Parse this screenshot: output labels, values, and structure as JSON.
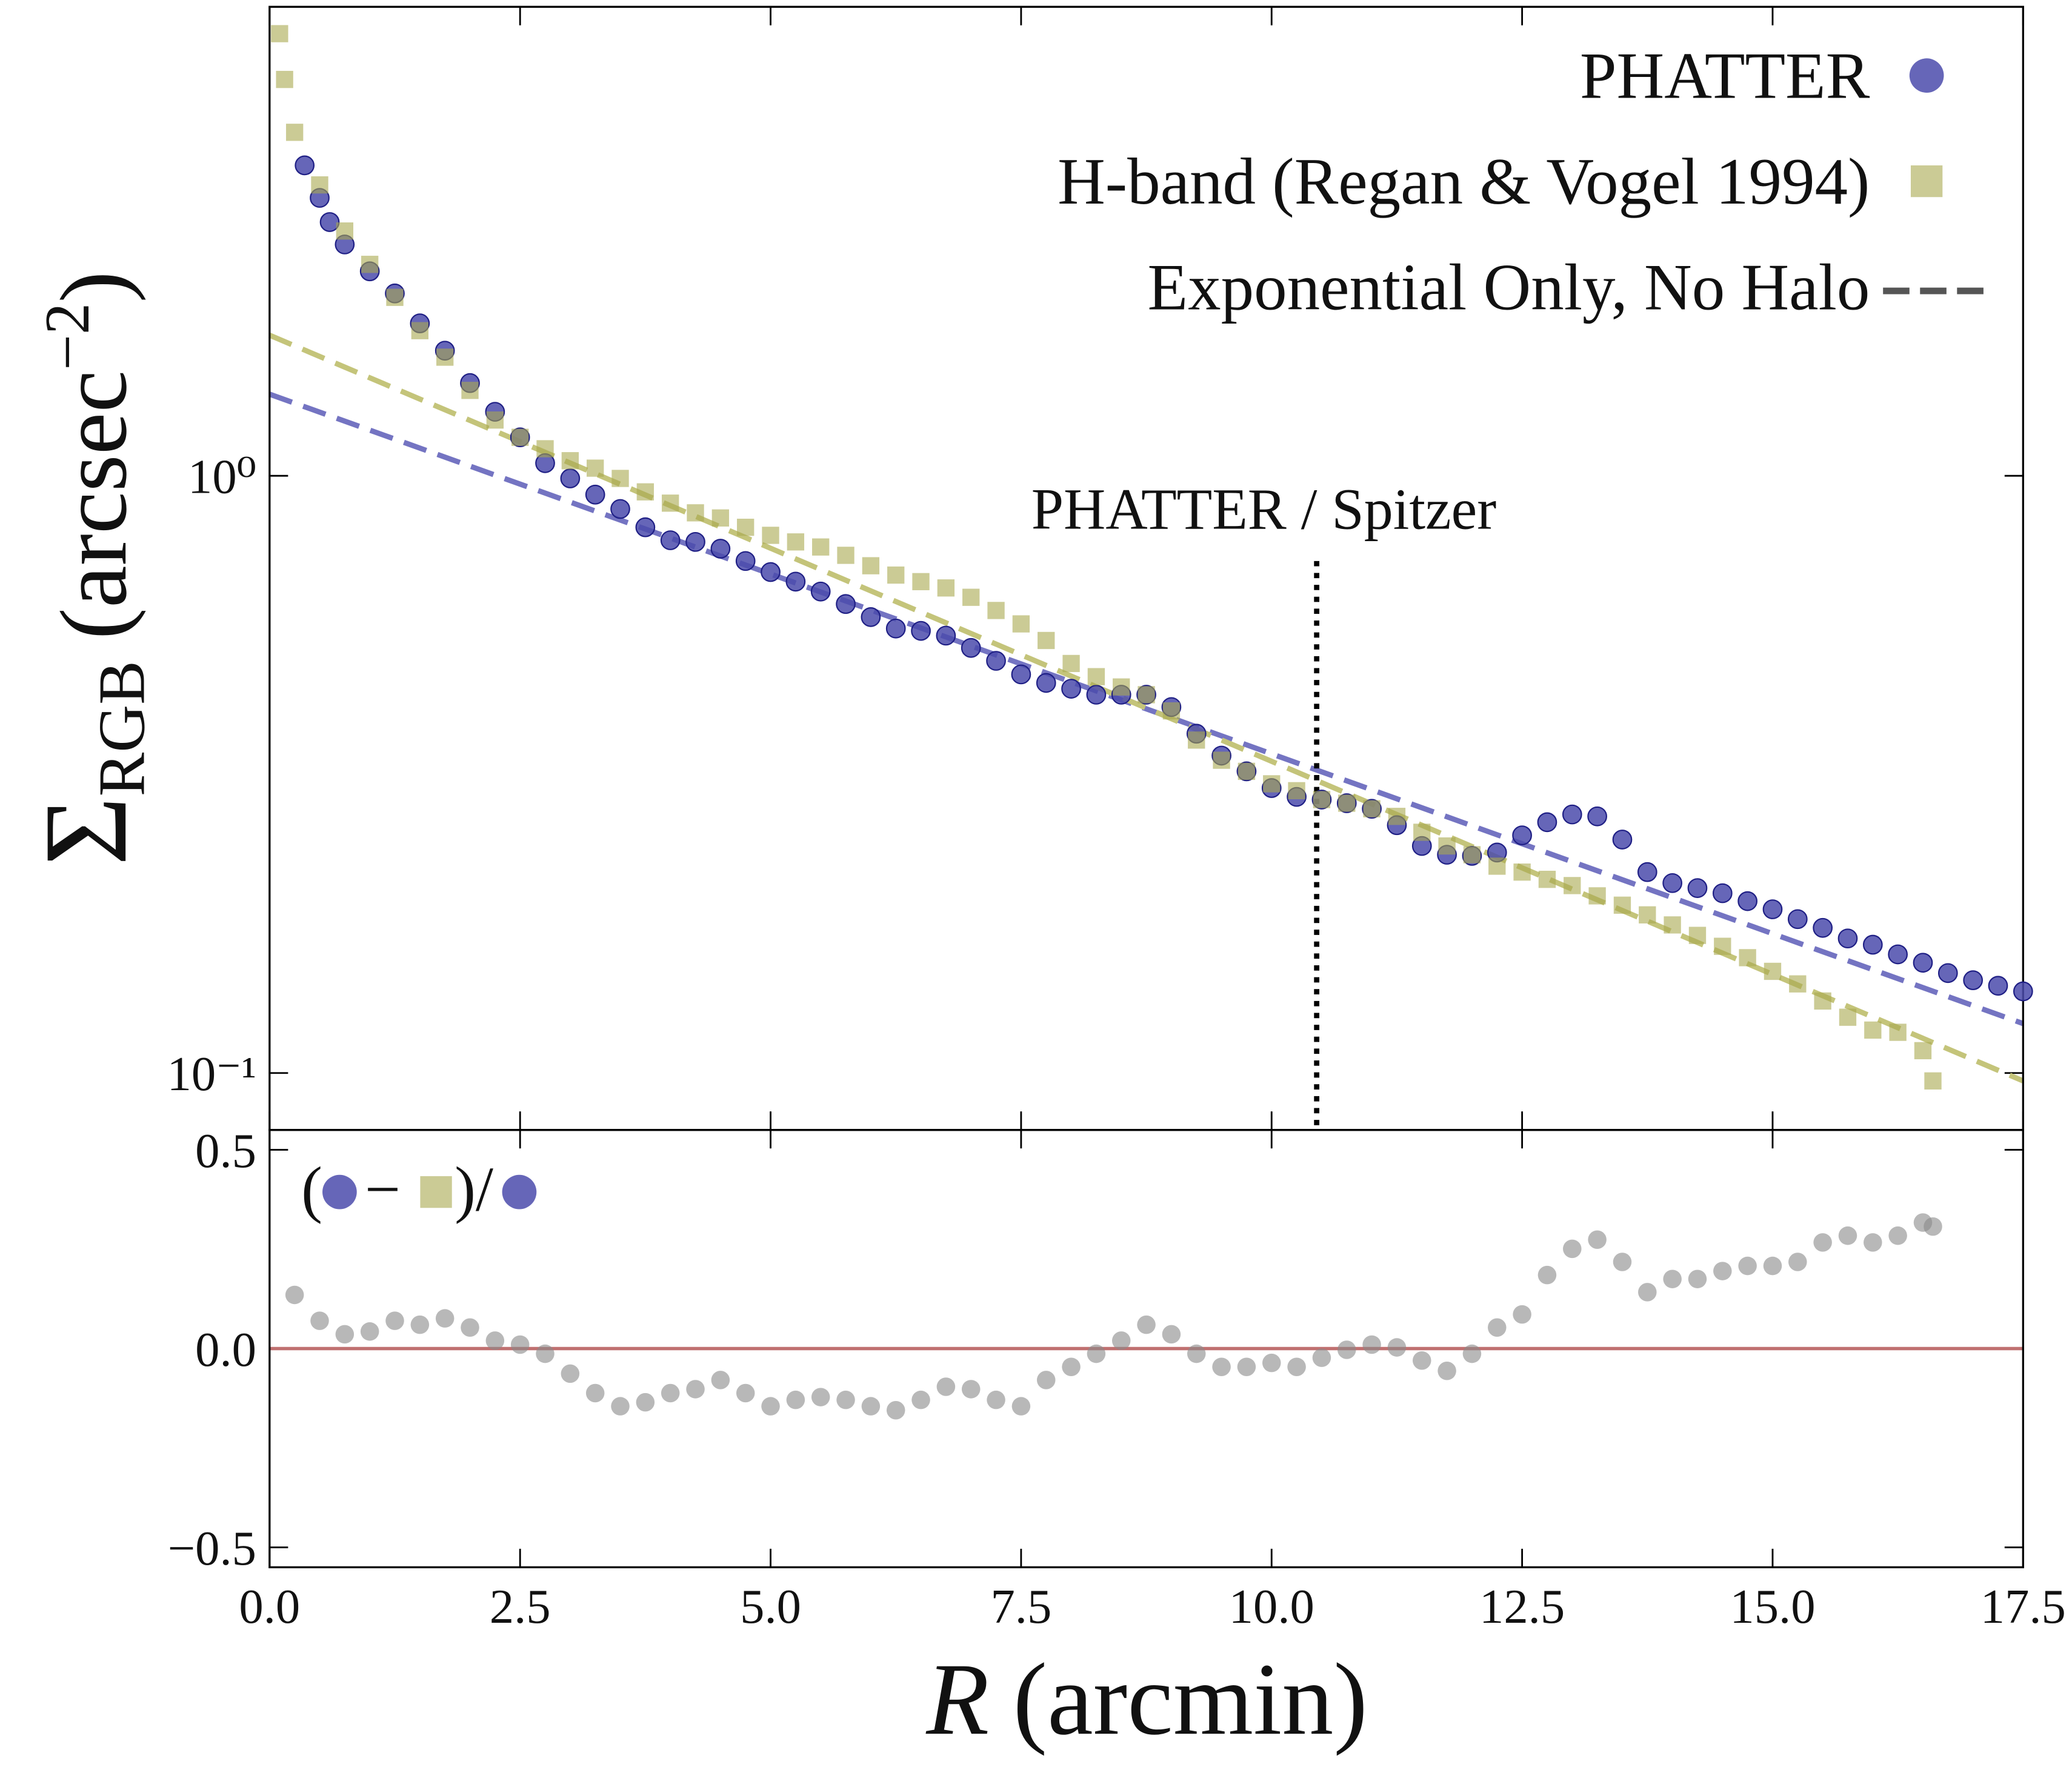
{
  "chart_data": [
    {
      "type": "scatter",
      "ylabel": [
        "Σ",
        "RGB",
        "(arcsec",
        "−2",
        ")"
      ],
      "xlim": [
        0,
        17.5
      ],
      "ylim": [
        0.0803,
        6.1
      ],
      "log_y": true,
      "yticks": [
        {
          "value": 1,
          "label": "10⁰"
        },
        {
          "value": 0.1,
          "label": "10⁻¹"
        }
      ],
      "legend": "upper right",
      "series": [
        {
          "name": "PHATTER",
          "marker": "circle",
          "color": "#4b4bab",
          "edge": "#1f1f85",
          "x": [
            0.35,
            0.5,
            0.6,
            0.75,
            1,
            1.25,
            1.5,
            1.75,
            2,
            2.25,
            2.5,
            2.75,
            3,
            3.25,
            3.5,
            3.75,
            4,
            4.25,
            4.5,
            4.75,
            5,
            5.25,
            5.5,
            5.75,
            6,
            6.25,
            6.5,
            6.75,
            7,
            7.25,
            7.5,
            7.75,
            8,
            8.25,
            8.5,
            8.75,
            9,
            9.25,
            9.5,
            9.75,
            10,
            10.25,
            10.5,
            10.75,
            11,
            11.25,
            11.5,
            11.75,
            12,
            12.25,
            12.5,
            12.75,
            13,
            13.25,
            13.5,
            13.75,
            14,
            14.25,
            14.5,
            14.75,
            15,
            15.25,
            15.5,
            15.75,
            16,
            16.25,
            16.5,
            16.75,
            17,
            17.25,
            17.5
          ],
          "values": [
            3.31,
            2.92,
            2.66,
            2.44,
            2.2,
            2.02,
            1.8,
            1.62,
            1.43,
            1.28,
            1.16,
            1.05,
            0.99,
            0.93,
            0.88,
            0.82,
            0.78,
            0.775,
            0.755,
            0.72,
            0.69,
            0.665,
            0.64,
            0.61,
            0.58,
            0.555,
            0.55,
            0.54,
            0.515,
            0.49,
            0.465,
            0.45,
            0.44,
            0.43,
            0.43,
            0.43,
            0.41,
            0.37,
            0.34,
            0.32,
            0.3,
            0.29,
            0.287,
            0.283,
            0.277,
            0.26,
            0.24,
            0.232,
            0.231,
            0.234,
            0.25,
            0.263,
            0.271,
            0.269,
            0.246,
            0.217,
            0.208,
            0.204,
            0.2,
            0.194,
            0.188,
            0.181,
            0.175,
            0.168,
            0.164,
            0.158,
            0.153,
            0.147,
            0.143,
            0.14,
            0.137
          ]
        },
        {
          "name": "H-band (Regan & Vogel 1994)",
          "marker": "square",
          "color": "#a8a84e",
          "edge": "none",
          "x": [
            0.1,
            0.15,
            0.25,
            0.5,
            0.75,
            1,
            1.25,
            1.5,
            1.75,
            2,
            2.25,
            2.5,
            2.75,
            3,
            3.25,
            3.5,
            3.75,
            4,
            4.25,
            4.5,
            4.75,
            5,
            5.25,
            5.5,
            5.75,
            6,
            6.25,
            6.5,
            6.75,
            7,
            7.25,
            7.5,
            7.75,
            8,
            8.25,
            8.5,
            8.75,
            9,
            9.25,
            9.5,
            9.75,
            10,
            10.25,
            10.5,
            10.75,
            11,
            11.25,
            11.5,
            11.75,
            12,
            12.25,
            12.5,
            12.75,
            13,
            13.25,
            13.5,
            13.75,
            14,
            14.25,
            14.5,
            14.75,
            15,
            15.25,
            15.5,
            15.75,
            16,
            16.25,
            16.5,
            16.6
          ],
          "values": [
            5.5,
            4.61,
            3.76,
            3.07,
            2.57,
            2.26,
            1.99,
            1.75,
            1.58,
            1.39,
            1.24,
            1.16,
            1.11,
            1.06,
            1.03,
            0.99,
            0.94,
            0.9,
            0.867,
            0.85,
            0.82,
            0.795,
            0.775,
            0.76,
            0.736,
            0.707,
            0.682,
            0.665,
            0.649,
            0.626,
            0.595,
            0.565,
            0.53,
            0.485,
            0.461,
            0.443,
            0.43,
            0.404,
            0.361,
            0.334,
            0.32,
            0.305,
            0.297,
            0.287,
            0.283,
            0.277,
            0.269,
            0.253,
            0.24,
            0.232,
            0.222,
            0.217,
            0.211,
            0.206,
            0.198,
            0.191,
            0.184,
            0.177,
            0.17,
            0.163,
            0.156,
            0.148,
            0.141,
            0.132,
            0.124,
            0.118,
            0.117,
            0.109,
            0.097
          ]
        }
      ],
      "fits": [
        {
          "color": "#7474c2",
          "x": [
            0,
            17.5
          ],
          "values": [
            1.37,
            0.121
          ]
        },
        {
          "color": "#c4c47a",
          "x": [
            0,
            17.5
          ],
          "values": [
            1.72,
            0.097
          ]
        }
      ],
      "fit_legend": {
        "name": "Exponential Only, No Halo",
        "color": "#555555"
      },
      "vline": {
        "x": 10.45,
        "ymax": 0.72,
        "label": "PHATTER / Spitzer"
      }
    },
    {
      "type": "scatter",
      "xlabel": [
        "R",
        "(arcmin)"
      ],
      "xlim": [
        0,
        17.5
      ],
      "ylim": [
        -0.55,
        0.55
      ],
      "xticks": [
        {
          "value": 0,
          "label": "0.0"
        },
        2.5,
        {
          "value": 5,
          "label": "5.0"
        },
        7.5,
        {
          "value": 10,
          "label": "10.0"
        },
        12.5,
        {
          "value": 15,
          "label": "15.0"
        },
        17.5
      ],
      "yticks": [
        0.5,
        {
          "value": 0,
          "label": "0.0"
        },
        {
          "value": -0.5,
          "label": "−0.5"
        }
      ],
      "legend_text": [
        "(",
        "−",
        ")/"
      ],
      "hline": {
        "y": 0,
        "color": "#c07070"
      },
      "series": [
        {
          "marker": "circle",
          "color": "#888888",
          "x": [
            0.25,
            0.5,
            0.75,
            1,
            1.25,
            1.5,
            1.75,
            2,
            2.25,
            2.5,
            2.75,
            3,
            3.25,
            3.5,
            3.75,
            4,
            4.25,
            4.5,
            4.75,
            5,
            5.25,
            5.5,
            5.75,
            6,
            6.25,
            6.5,
            6.75,
            7,
            7.25,
            7.5,
            7.75,
            8,
            8.25,
            8.5,
            8.75,
            9,
            9.25,
            9.5,
            9.75,
            10,
            10.25,
            10.5,
            10.75,
            11,
            11.25,
            11.5,
            11.75,
            12,
            12.25,
            12.5,
            12.75,
            13,
            13.25,
            13.5,
            13.75,
            14,
            14.25,
            14.5,
            14.75,
            15,
            15.25,
            15.5,
            15.75,
            16,
            16.25,
            16.5,
            16.6
          ],
          "values": [
            0.135,
            0.07,
            0.036,
            0.043,
            0.07,
            0.06,
            0.076,
            0.053,
            0.02,
            0.01,
            -0.013,
            -0.063,
            -0.112,
            -0.145,
            -0.135,
            -0.112,
            -0.102,
            -0.079,
            -0.112,
            -0.145,
            -0.129,
            -0.122,
            -0.129,
            -0.145,
            -0.155,
            -0.129,
            -0.096,
            -0.102,
            -0.129,
            -0.145,
            -0.079,
            -0.046,
            -0.013,
            0.02,
            0.06,
            0.036,
            -0.013,
            -0.046,
            -0.046,
            -0.036,
            -0.046,
            -0.023,
            -0.003,
            0.01,
            0.003,
            -0.03,
            -0.056,
            -0.013,
            0.053,
            0.086,
            0.185,
            0.251,
            0.274,
            0.218,
            0.142,
            0.175,
            0.175,
            0.195,
            0.208,
            0.208,
            0.218,
            0.267,
            0.284,
            0.267,
            0.284,
            0.317,
            0.307
          ]
        }
      ]
    }
  ]
}
